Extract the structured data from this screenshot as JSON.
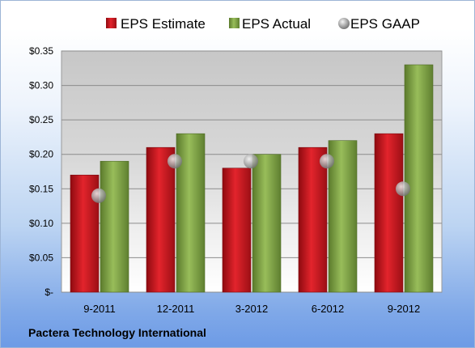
{
  "footer": "Pactera Technology International",
  "colors": {
    "estimate": "#c8151d",
    "actual": "#7ea048",
    "gaap": "#a8a8a8"
  },
  "chart_data": {
    "type": "bar",
    "categories": [
      "9-2011",
      "12-2011",
      "3-2012",
      "6-2012",
      "9-2012"
    ],
    "series": [
      {
        "name": "EPS Estimate",
        "kind": "bar",
        "values": [
          0.17,
          0.21,
          0.18,
          0.21,
          0.23
        ]
      },
      {
        "name": "EPS Actual",
        "kind": "bar",
        "values": [
          0.19,
          0.23,
          0.2,
          0.22,
          0.33
        ]
      },
      {
        "name": "EPS GAAP",
        "kind": "marker",
        "values": [
          0.14,
          0.19,
          0.19,
          0.19,
          0.15
        ]
      }
    ],
    "ylim": [
      0,
      0.35
    ],
    "yticks": [
      0,
      0.05,
      0.1,
      0.15,
      0.2,
      0.25,
      0.3,
      0.35
    ],
    "ytick_labels": [
      "$-",
      "$0.05",
      "$0.10",
      "$0.15",
      "$0.20",
      "$0.25",
      "$0.30",
      "$0.35"
    ],
    "grid": true,
    "legend": "top"
  }
}
